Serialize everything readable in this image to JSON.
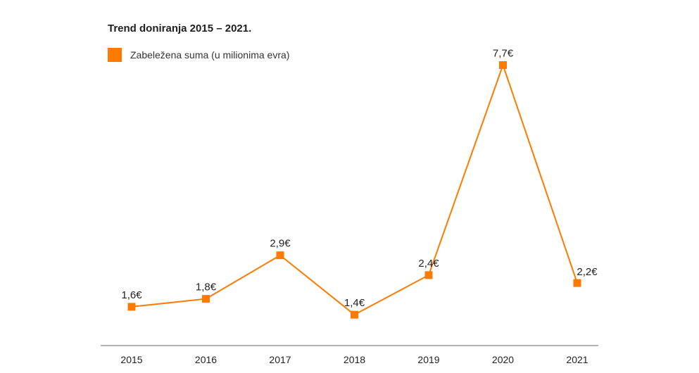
{
  "chart_data": {
    "type": "line",
    "title": "Trend doniranja 2015 – 2021.",
    "categories": [
      "2015",
      "2016",
      "2017",
      "2018",
      "2019",
      "2020",
      "2021"
    ],
    "series": [
      {
        "name": "Zabeležena suma (u milionima evra)",
        "values": [
          1.6,
          1.8,
          2.9,
          1.4,
          2.4,
          7.7,
          2.2
        ],
        "labels": [
          "1,6€",
          "1,8€",
          "2,9€",
          "1,4€",
          "2,4€",
          "7,7€",
          "2,2€"
        ],
        "color": "#ff7a00"
      }
    ],
    "xlabel": "",
    "ylabel": "",
    "grid": false,
    "legend_position": "top-left"
  },
  "colors": {
    "accent": "#ff7a00",
    "axis": "#9a9a9a",
    "text": "#222222"
  }
}
